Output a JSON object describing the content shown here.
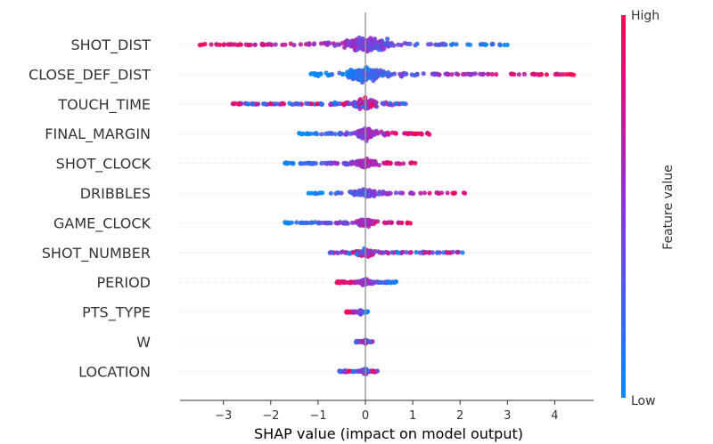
{
  "chart_data": {
    "type": "scatter",
    "subtype": "shap-beeswarm-summary",
    "xlabel": "SHAP value (impact on model output)",
    "xlim": [
      -3.85,
      4.6
    ],
    "xticks": [
      -3,
      -2,
      -1,
      0,
      1,
      2,
      3,
      4
    ],
    "xtick_labels": [
      "−3",
      "−2",
      "−1",
      "0",
      "1",
      "2",
      "3",
      "4"
    ],
    "colorbar": {
      "label": "Feature value",
      "high_label": "High",
      "low_label": "Low",
      "low_color": "#008bfb",
      "high_color": "#ff0052"
    },
    "features": [
      {
        "name": "SHOT_DIST",
        "min": -3.5,
        "max": 3.0,
        "center": 0.0,
        "density": 1.0,
        "low_side": "right"
      },
      {
        "name": "CLOSE_DEF_DIST",
        "min": -1.15,
        "max": 4.4,
        "center": 0.0,
        "density": 0.95,
        "low_side": "left"
      },
      {
        "name": "TOUCH_TIME",
        "min": -2.8,
        "max": 0.85,
        "center": 0.0,
        "density": 0.75,
        "low_side": "mixed"
      },
      {
        "name": "FINAL_MARGIN",
        "min": -1.4,
        "max": 1.35,
        "center": 0.0,
        "density": 0.7,
        "low_side": "left"
      },
      {
        "name": "SHOT_CLOCK",
        "min": -1.7,
        "max": 1.05,
        "center": 0.0,
        "density": 0.6,
        "low_side": "left"
      },
      {
        "name": "DRIBBLES",
        "min": -1.2,
        "max": 2.1,
        "center": 0.0,
        "density": 0.5,
        "low_side": "left"
      },
      {
        "name": "GAME_CLOCK",
        "min": -1.7,
        "max": 0.95,
        "center": 0.0,
        "density": 0.5,
        "low_side": "left"
      },
      {
        "name": "SHOT_NUMBER",
        "min": -0.75,
        "max": 2.05,
        "center": 0.0,
        "density": 0.5,
        "low_side": "mixed"
      },
      {
        "name": "PERIOD",
        "min": -0.6,
        "max": 0.65,
        "center": 0.0,
        "density": 0.45,
        "low_side": "right"
      },
      {
        "name": "PTS_TYPE",
        "min": -0.4,
        "max": 0.05,
        "center": -0.1,
        "density": 0.3,
        "low_side": "right"
      },
      {
        "name": "W",
        "min": -0.2,
        "max": 0.15,
        "center": 0.0,
        "density": 0.3,
        "low_side": "mixed"
      },
      {
        "name": "LOCATION",
        "min": -0.55,
        "max": 0.25,
        "center": 0.0,
        "density": 0.35,
        "low_side": "mixed"
      }
    ]
  }
}
